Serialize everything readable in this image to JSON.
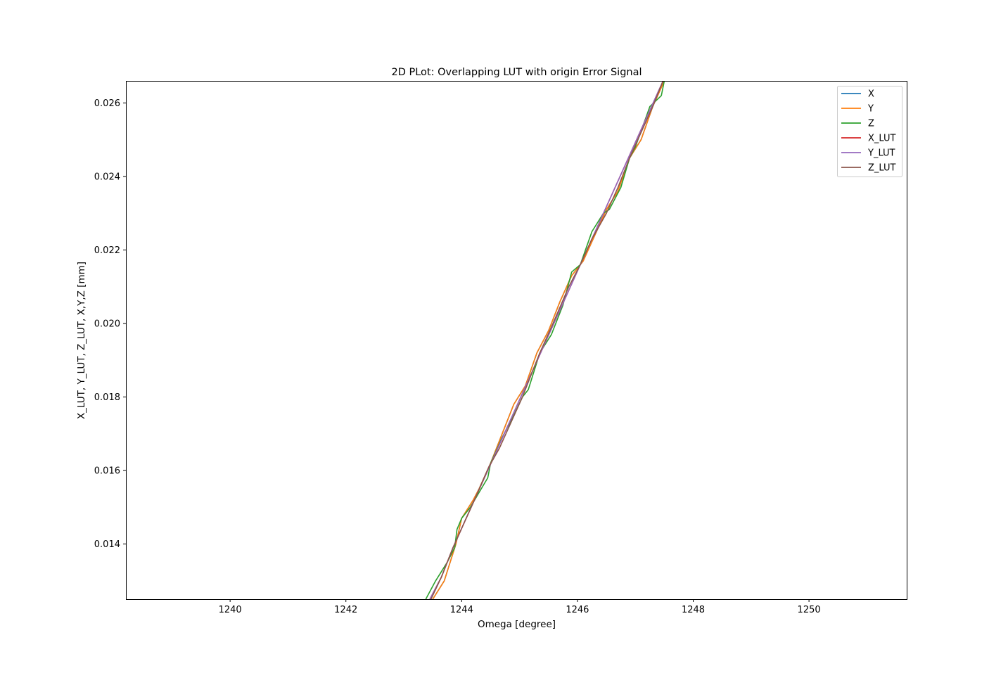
{
  "chart_data": {
    "type": "line",
    "title": "2D PLot: Overlapping LUT with origin Error Signal",
    "xlabel": "Omega [degree]",
    "ylabel": "X_LUT, Y_LUT, Z_LUT, X,Y,Z [mm]",
    "xlim": [
      1238.2,
      1251.7
    ],
    "ylim": [
      0.0125,
      0.0266
    ],
    "xticks": [
      1240,
      1242,
      1244,
      1246,
      1248,
      1250
    ],
    "xtick_labels": [
      "1240",
      "1242",
      "1244",
      "1246",
      "1248",
      "1250"
    ],
    "yticks": [
      0.014,
      0.016,
      0.018,
      0.02,
      0.022,
      0.024,
      0.026
    ],
    "ytick_labels": [
      "0.014",
      "0.016",
      "0.018",
      "0.020",
      "0.022",
      "0.024",
      "0.026"
    ],
    "grid": false,
    "legend_position": "upper right",
    "series": [
      {
        "name": "X",
        "color": "#1f77b4",
        "x": [
          1243.5,
          1243.7,
          1243.9,
          1244.0,
          1244.2,
          1244.3,
          1244.5,
          1244.7,
          1244.9,
          1245.1,
          1245.3,
          1245.5,
          1245.7,
          1245.9,
          1246.1,
          1246.3,
          1246.5,
          1246.7,
          1246.9,
          1247.1,
          1247.3,
          1247.5
        ],
        "y": [
          0.0125,
          0.013,
          0.014,
          0.0147,
          0.0152,
          0.0155,
          0.0162,
          0.017,
          0.0178,
          0.0183,
          0.0192,
          0.0198,
          0.0206,
          0.0213,
          0.0217,
          0.0224,
          0.0231,
          0.0236,
          0.0245,
          0.025,
          0.0259,
          0.0266
        ]
      },
      {
        "name": "Y",
        "color": "#ff7f0e",
        "x": [
          1243.5,
          1243.7,
          1243.9,
          1244.0,
          1244.2,
          1244.3,
          1244.5,
          1244.7,
          1244.9,
          1245.1,
          1245.3,
          1245.5,
          1245.7,
          1245.9,
          1246.1,
          1246.3,
          1246.5,
          1246.7,
          1246.9,
          1247.1,
          1247.3,
          1247.5
        ],
        "y": [
          0.0125,
          0.013,
          0.014,
          0.0147,
          0.0152,
          0.0155,
          0.0162,
          0.017,
          0.0178,
          0.0183,
          0.0192,
          0.0198,
          0.0206,
          0.0213,
          0.0217,
          0.0224,
          0.0231,
          0.0236,
          0.0245,
          0.025,
          0.0259,
          0.0266
        ]
      },
      {
        "name": "Z",
        "color": "#2ca02c",
        "x": [
          1243.38,
          1243.55,
          1243.75,
          1243.88,
          1243.92,
          1244.0,
          1244.15,
          1244.3,
          1244.45,
          1244.5,
          1244.7,
          1244.9,
          1245.05,
          1245.15,
          1245.35,
          1245.55,
          1245.75,
          1245.9,
          1246.05,
          1246.25,
          1246.45,
          1246.55,
          1246.75,
          1246.9,
          1247.0,
          1247.25,
          1247.45,
          1247.5
        ],
        "y": [
          0.0125,
          0.013,
          0.0135,
          0.0139,
          0.0144,
          0.0147,
          0.015,
          0.0154,
          0.0158,
          0.0162,
          0.0169,
          0.0175,
          0.018,
          0.0182,
          0.0192,
          0.0197,
          0.0205,
          0.0214,
          0.0216,
          0.0225,
          0.023,
          0.0231,
          0.0237,
          0.0245,
          0.0248,
          0.0259,
          0.0262,
          0.0266
        ]
      },
      {
        "name": "X_LUT",
        "color": "#d62728",
        "x": [
          1243.45,
          1243.65,
          1243.85,
          1244.05,
          1244.25,
          1244.45,
          1244.65,
          1244.85,
          1245.05,
          1245.25,
          1245.45,
          1245.65,
          1245.85,
          1246.05,
          1246.25,
          1246.45,
          1246.65,
          1246.85,
          1247.05,
          1247.25,
          1247.48
        ],
        "y": [
          0.0125,
          0.0131,
          0.0139,
          0.0146,
          0.0153,
          0.016,
          0.0167,
          0.0174,
          0.0181,
          0.0188,
          0.0195,
          0.0202,
          0.0209,
          0.0216,
          0.0223,
          0.023,
          0.0237,
          0.0244,
          0.0251,
          0.0258,
          0.0266
        ]
      },
      {
        "name": "Y_LUT",
        "color": "#9467bd",
        "x": [
          1243.45,
          1243.65,
          1243.85,
          1244.05,
          1244.25,
          1244.45,
          1244.65,
          1244.85,
          1245.05,
          1245.25,
          1245.45,
          1245.65,
          1245.85,
          1246.05,
          1246.25,
          1246.45,
          1246.65,
          1246.85,
          1247.05,
          1247.25,
          1247.48
        ],
        "y": [
          0.0125,
          0.0131,
          0.0139,
          0.0146,
          0.0153,
          0.016,
          0.0167,
          0.0174,
          0.0181,
          0.0188,
          0.0195,
          0.0202,
          0.0209,
          0.0216,
          0.0223,
          0.023,
          0.0237,
          0.0244,
          0.0251,
          0.0258,
          0.0266
        ]
      },
      {
        "name": "Z_LUT",
        "color": "#8c564b",
        "x": [
          1243.47,
          1243.65,
          1243.85,
          1244.05,
          1244.25,
          1244.47,
          1244.65,
          1244.85,
          1245.05,
          1245.35,
          1245.55,
          1245.85,
          1246.05,
          1246.25,
          1246.5,
          1246.7,
          1246.9,
          1247.1,
          1247.3,
          1247.48
        ],
        "y": [
          0.0125,
          0.0131,
          0.0139,
          0.0146,
          0.0153,
          0.0161,
          0.0166,
          0.0173,
          0.018,
          0.0192,
          0.0199,
          0.021,
          0.0216,
          0.0223,
          0.023,
          0.0237,
          0.0245,
          0.0252,
          0.0259,
          0.0266
        ]
      }
    ]
  }
}
